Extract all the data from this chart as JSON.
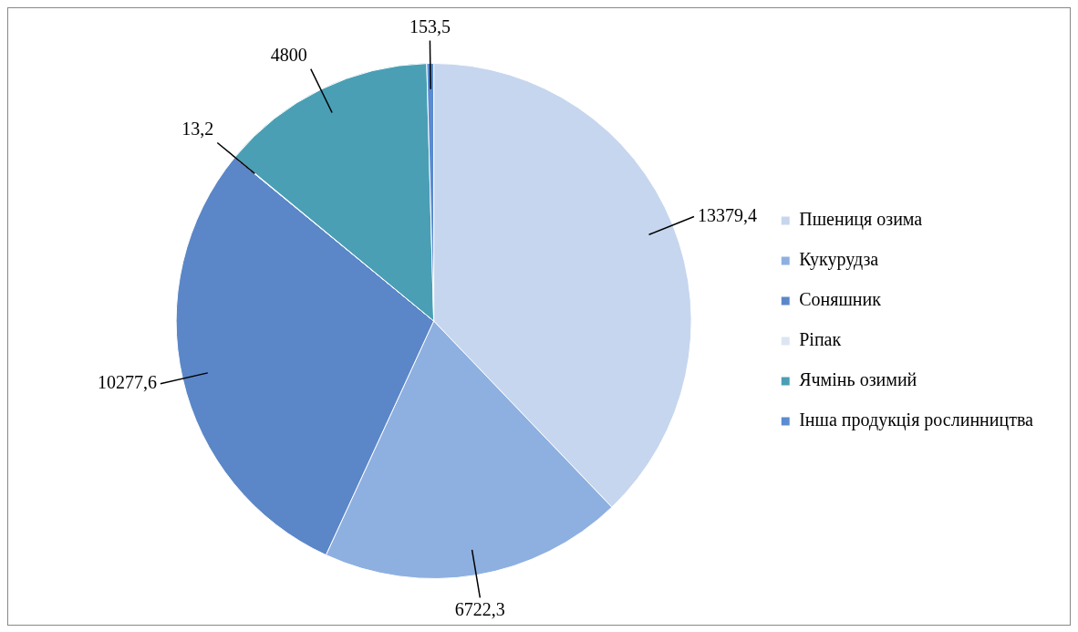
{
  "chart_data": {
    "type": "pie",
    "categories": [
      "Пшениця озима",
      "Кукурудза",
      "Соняшник",
      "Ріпак",
      "Ячмінь озимий",
      "Інша продукція рослинництва"
    ],
    "values": [
      13379.4,
      6722.3,
      10277.6,
      13.2,
      4800,
      153.5
    ],
    "value_labels": [
      "13379,4",
      "6722,3",
      "10277,6",
      "13,2",
      "4800",
      "153,5"
    ],
    "colors": [
      "#c6d6ee",
      "#8eb0e0",
      "#5b87c8",
      "#dce6f2",
      "#4a9fb5",
      "#5b8bd0"
    ],
    "legend": "right"
  }
}
